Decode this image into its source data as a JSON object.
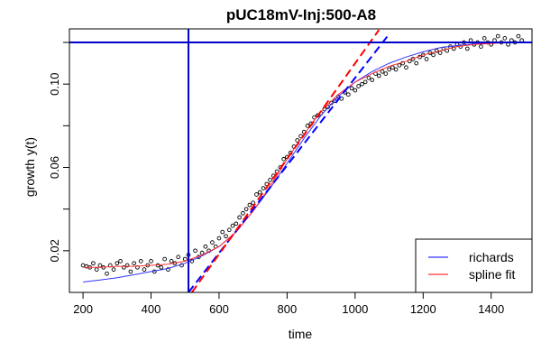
{
  "chart_data": {
    "type": "scatter",
    "title": "pUC18mV-Inj:500-A8",
    "xlabel": "time",
    "ylabel": "growth y(t)",
    "xlim": [
      160,
      1520
    ],
    "ylim": [
      0.0,
      0.1265
    ],
    "x_ticks": [
      200,
      400,
      600,
      800,
      1000,
      1200,
      1400
    ],
    "y_ticks": [
      0.02,
      0.06,
      0.1
    ],
    "y_minor_ticks": [
      0.04,
      0.08,
      0.12
    ],
    "grid": false,
    "legend": {
      "position": "bottom-right",
      "entries": [
        {
          "label": "richards",
          "color": "#3333ff"
        },
        {
          "label": "spline fit",
          "color": "#ff3333"
        }
      ]
    },
    "reference_lines": {
      "vertical_x": 510,
      "horizontal_y": 0.12,
      "color": "#0000cc"
    },
    "tangent_lines": [
      {
        "name": "richards tangent",
        "color": "#0000ff",
        "points": [
          [
            510,
            0.0
          ],
          [
            1100,
            0.124
          ]
        ]
      },
      {
        "name": "spline tangent",
        "color": "#ff0000",
        "points": [
          [
            520,
            0.0
          ],
          [
            1070,
            0.126
          ]
        ]
      }
    ],
    "series": [
      {
        "name": "observed",
        "kind": "points",
        "color": "#000000",
        "x": [
          200,
          210,
          220,
          230,
          240,
          250,
          260,
          270,
          280,
          290,
          300,
          310,
          320,
          330,
          340,
          350,
          360,
          370,
          380,
          390,
          400,
          410,
          420,
          430,
          440,
          450,
          460,
          470,
          480,
          490,
          500,
          510,
          520,
          530,
          540,
          550,
          560,
          570,
          580,
          590,
          600,
          610,
          620,
          630,
          640,
          650,
          660,
          670,
          680,
          690,
          700,
          710,
          720,
          730,
          740,
          750,
          760,
          770,
          780,
          790,
          800,
          810,
          820,
          830,
          840,
          850,
          860,
          870,
          880,
          890,
          900,
          910,
          920,
          930,
          940,
          950,
          960,
          970,
          980,
          990,
          1000,
          1010,
          1020,
          1030,
          1040,
          1050,
          1060,
          1070,
          1080,
          1090,
          1100,
          1110,
          1120,
          1130,
          1140,
          1150,
          1160,
          1170,
          1180,
          1190,
          1200,
          1210,
          1220,
          1230,
          1240,
          1250,
          1260,
          1270,
          1280,
          1290,
          1300,
          1310,
          1320,
          1330,
          1340,
          1350,
          1360,
          1370,
          1380,
          1390,
          1400,
          1410,
          1420,
          1430,
          1440,
          1450,
          1460,
          1470,
          1480,
          1490
        ],
        "y": [
          0.013,
          0.0125,
          0.012,
          0.014,
          0.011,
          0.013,
          0.012,
          0.009,
          0.013,
          0.011,
          0.014,
          0.015,
          0.012,
          0.013,
          0.01,
          0.014,
          0.012,
          0.015,
          0.011,
          0.013,
          0.015,
          0.01,
          0.013,
          0.012,
          0.016,
          0.011,
          0.015,
          0.014,
          0.017,
          0.013,
          0.016,
          0.018,
          0.015,
          0.02,
          0.017,
          0.019,
          0.022,
          0.02,
          0.024,
          0.022,
          0.026,
          0.029,
          0.027,
          0.03,
          0.032,
          0.033,
          0.036,
          0.038,
          0.04,
          0.042,
          0.043,
          0.047,
          0.048,
          0.05,
          0.052,
          0.054,
          0.056,
          0.058,
          0.06,
          0.064,
          0.065,
          0.067,
          0.07,
          0.073,
          0.075,
          0.077,
          0.08,
          0.081,
          0.084,
          0.085,
          0.086,
          0.088,
          0.089,
          0.091,
          0.092,
          0.094,
          0.093,
          0.096,
          0.095,
          0.098,
          0.097,
          0.099,
          0.1,
          0.101,
          0.103,
          0.102,
          0.105,
          0.104,
          0.106,
          0.105,
          0.107,
          0.108,
          0.107,
          0.109,
          0.11,
          0.108,
          0.111,
          0.112,
          0.11,
          0.113,
          0.114,
          0.112,
          0.115,
          0.114,
          0.116,
          0.115,
          0.117,
          0.116,
          0.118,
          0.117,
          0.119,
          0.118,
          0.12,
          0.117,
          0.121,
          0.119,
          0.12,
          0.118,
          0.122,
          0.12,
          0.119,
          0.121,
          0.123,
          0.12,
          0.122,
          0.119,
          0.121,
          0.12,
          0.123,
          0.121
        ]
      },
      {
        "name": "richards",
        "kind": "line",
        "color": "#3333ff",
        "x": [
          200,
          250,
          300,
          350,
          400,
          450,
          500,
          550,
          600,
          650,
          700,
          750,
          800,
          850,
          900,
          950,
          1000,
          1050,
          1100,
          1150,
          1200,
          1250,
          1300,
          1350,
          1400,
          1450,
          1500
        ],
        "y": [
          0.005,
          0.006,
          0.007,
          0.0085,
          0.01,
          0.0115,
          0.014,
          0.0175,
          0.022,
          0.029,
          0.039,
          0.05,
          0.062,
          0.074,
          0.085,
          0.094,
          0.101,
          0.106,
          0.11,
          0.113,
          0.1155,
          0.1175,
          0.1185,
          0.1193,
          0.1198,
          0.1201,
          0.1203
        ]
      },
      {
        "name": "spline fit",
        "kind": "line",
        "color": "#ff3333",
        "x": [
          200,
          250,
          300,
          350,
          400,
          450,
          500,
          550,
          600,
          650,
          700,
          750,
          800,
          850,
          900,
          950,
          1000,
          1050,
          1100,
          1150,
          1200,
          1250,
          1300,
          1350,
          1400,
          1450,
          1500
        ],
        "y": [
          0.012,
          0.012,
          0.0125,
          0.0125,
          0.013,
          0.0135,
          0.015,
          0.018,
          0.022,
          0.029,
          0.039,
          0.051,
          0.064,
          0.076,
          0.087,
          0.095,
          0.101,
          0.105,
          0.1085,
          0.111,
          0.114,
          0.116,
          0.118,
          0.119,
          0.1195,
          0.12,
          0.12
        ]
      }
    ]
  }
}
